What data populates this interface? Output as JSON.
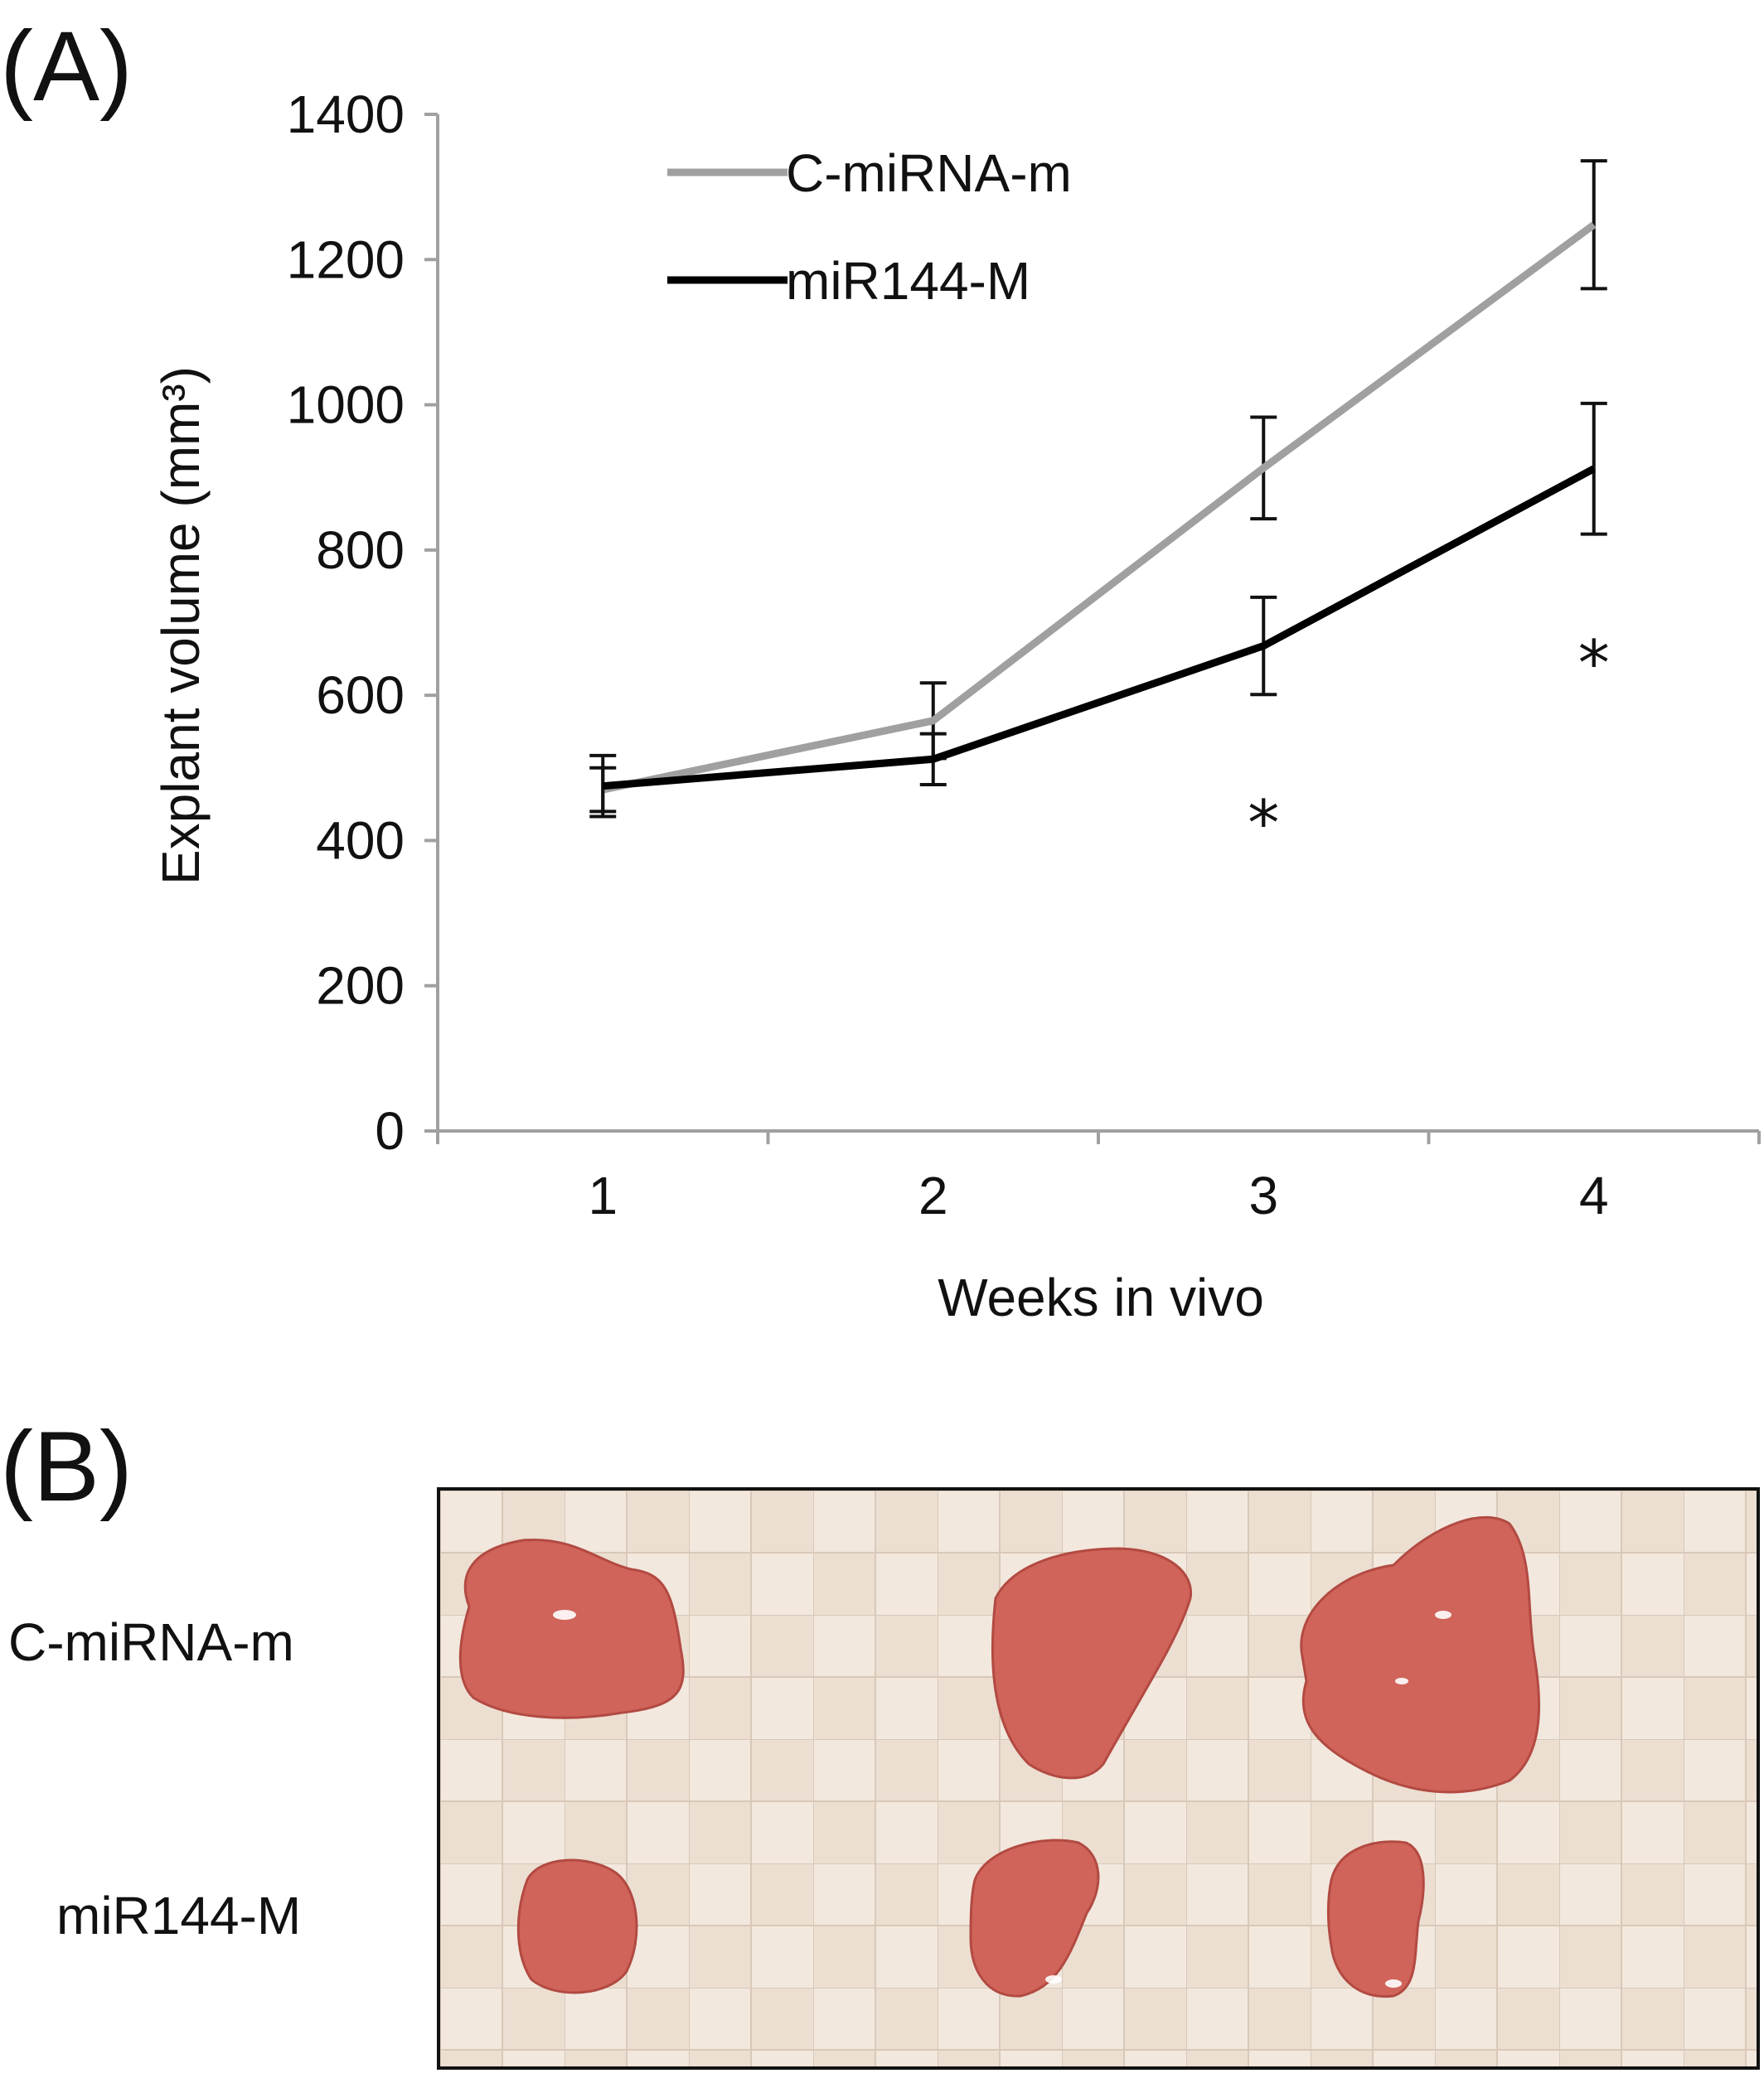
{
  "panels": {
    "a": "(A)",
    "b": "(B)"
  },
  "chart_data": {
    "type": "line",
    "x": [
      1,
      2,
      3,
      4
    ],
    "x_ticks": [
      "1",
      "2",
      "3",
      "4"
    ],
    "xlabel": "Weeks in vivo",
    "ylabel": "Explant volume (mm³)",
    "ylim": [
      0,
      1400
    ],
    "y_ticks": [
      0,
      200,
      400,
      600,
      800,
      1000,
      1200,
      1400
    ],
    "grid": false,
    "legend_position": "top-left",
    "series": [
      {
        "name": "C-miRNA-m",
        "color": "#a0a0a0",
        "values": [
          470,
          565,
          913,
          1248
        ],
        "errors": [
          30,
          52,
          70,
          88
        ]
      },
      {
        "name": "miR144-M",
        "color": "#000000",
        "values": [
          475,
          512,
          668,
          912
        ],
        "errors": [
          42,
          35,
          67,
          90
        ]
      }
    ],
    "annotations": [
      {
        "text": "*",
        "x": 3,
        "y": 440
      },
      {
        "text": "*",
        "x": 4,
        "y": 660
      }
    ]
  },
  "photo": {
    "row_labels": [
      "C-miRNA-m",
      "miR144-M"
    ],
    "background_color": "#ecdfd2",
    "tissue_color": "#d0645a"
  }
}
